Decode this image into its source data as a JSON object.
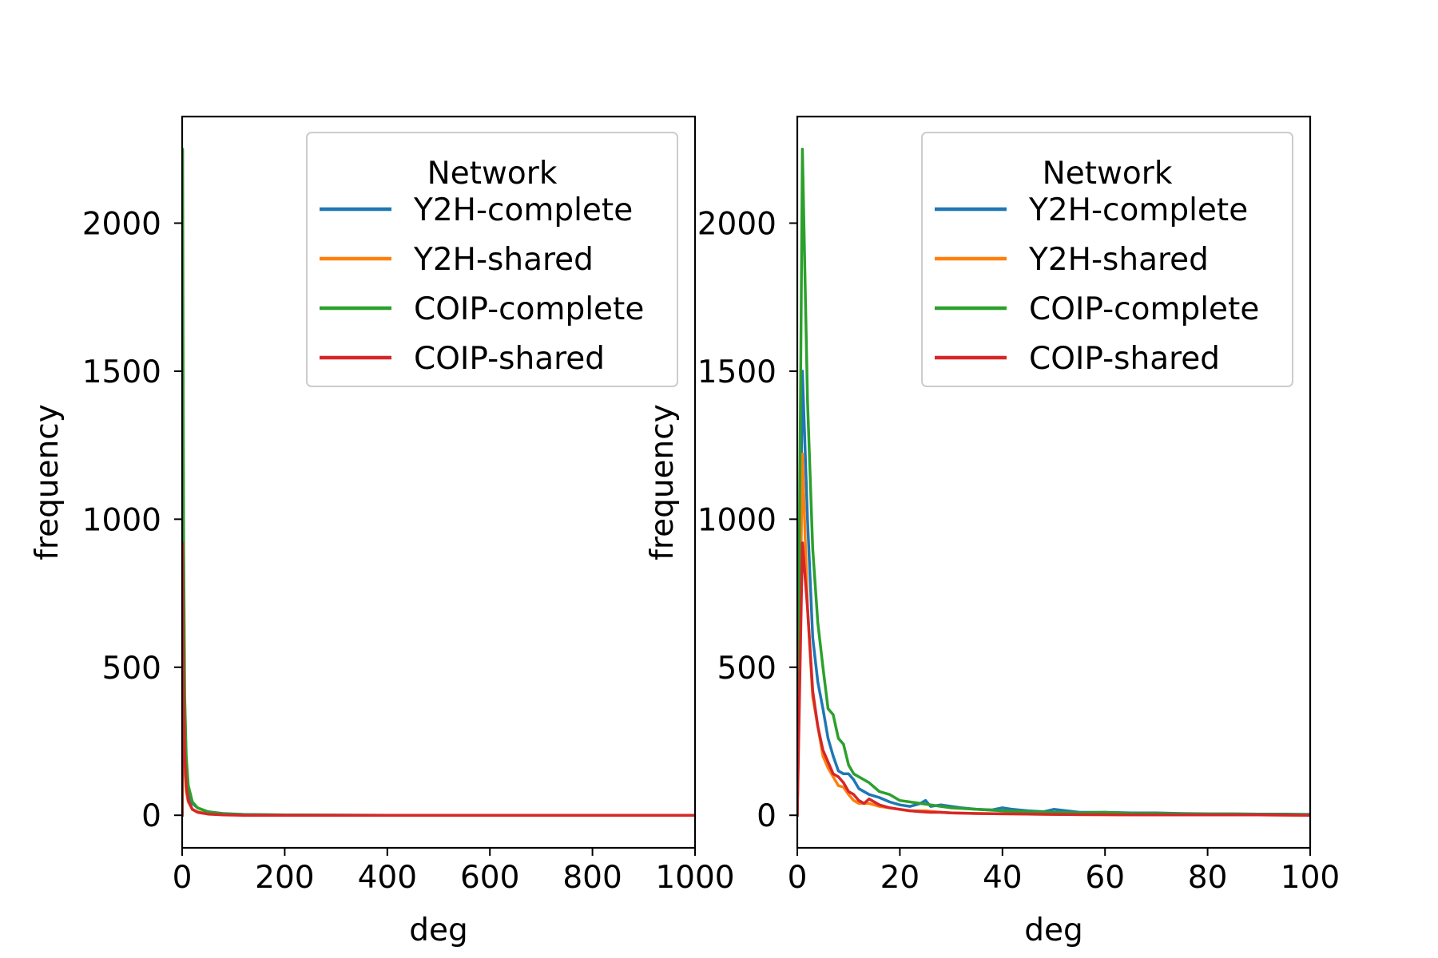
{
  "colors": {
    "Y2H-complete": "#1f77b4",
    "Y2H-shared": "#ff7f0e",
    "COIP-complete": "#2ca02c",
    "COIP-shared": "#d62728"
  },
  "chart_data": [
    {
      "type": "line",
      "xlabel": "deg",
      "ylabel": "frequency",
      "xlim": [
        0,
        1000
      ],
      "ylim": [
        -110,
        2360
      ],
      "xticks": [
        "0",
        "200",
        "400",
        "600",
        "800",
        "1000"
      ],
      "yticks": [
        "0",
        "500",
        "1000",
        "1500",
        "2000"
      ],
      "legend": {
        "title": "Network",
        "position": "top-right"
      },
      "grid": false,
      "series": [
        {
          "name": "Y2H-complete",
          "x": [
            0,
            1,
            2,
            3,
            5,
            8,
            12,
            20,
            30,
            50,
            80,
            120,
            200,
            400,
            1000
          ],
          "y": [
            0,
            1500,
            1000,
            600,
            250,
            120,
            70,
            40,
            25,
            12,
            6,
            3,
            1,
            0,
            0
          ]
        },
        {
          "name": "Y2H-shared",
          "x": [
            0,
            1,
            2,
            3,
            5,
            8,
            12,
            20,
            30,
            50,
            80,
            120,
            200,
            400,
            1000
          ],
          "y": [
            0,
            1220,
            700,
            400,
            160,
            80,
            45,
            20,
            12,
            5,
            2,
            1,
            0,
            0,
            0
          ]
        },
        {
          "name": "COIP-complete",
          "x": [
            0,
            1,
            2,
            3,
            5,
            8,
            12,
            20,
            30,
            50,
            80,
            120,
            200,
            400,
            1000
          ],
          "y": [
            0,
            2250,
            1400,
            900,
            400,
            200,
            100,
            45,
            25,
            12,
            5,
            2,
            1,
            0,
            0
          ]
        },
        {
          "name": "COIP-shared",
          "x": [
            0,
            1,
            2,
            3,
            5,
            8,
            12,
            20,
            30,
            50,
            80,
            120,
            200,
            400,
            1000
          ],
          "y": [
            0,
            920,
            600,
            400,
            200,
            100,
            50,
            20,
            10,
            4,
            1,
            0,
            0,
            0,
            0
          ]
        }
      ]
    },
    {
      "type": "line",
      "xlabel": "deg",
      "ylabel": "frequency",
      "xlim": [
        0,
        100
      ],
      "ylim": [
        -110,
        2360
      ],
      "xticks": [
        "0",
        "20",
        "40",
        "60",
        "80",
        "100"
      ],
      "yticks": [
        "0",
        "500",
        "1000",
        "1500",
        "2000"
      ],
      "legend": {
        "title": "Network",
        "position": "top-right"
      },
      "grid": false,
      "series": [
        {
          "name": "Y2H-complete",
          "x": [
            0,
            1,
            2,
            3,
            4,
            5,
            6,
            7,
            8,
            9,
            10,
            11,
            12,
            14,
            16,
            18,
            20,
            22,
            24,
            25,
            26,
            28,
            30,
            32,
            35,
            38,
            40,
            42,
            45,
            48,
            50,
            55,
            60,
            65,
            70,
            75,
            80,
            85,
            90,
            95,
            100
          ],
          "y": [
            0,
            1500,
            1000,
            600,
            450,
            360,
            260,
            200,
            150,
            140,
            140,
            120,
            90,
            70,
            60,
            45,
            35,
            30,
            40,
            50,
            30,
            35,
            30,
            25,
            20,
            18,
            25,
            20,
            15,
            12,
            20,
            10,
            10,
            8,
            8,
            6,
            5,
            5,
            4,
            4,
            3
          ]
        },
        {
          "name": "Y2H-shared",
          "x": [
            0,
            1,
            2,
            3,
            4,
            5,
            6,
            7,
            8,
            9,
            10,
            11,
            12,
            14,
            16,
            18,
            20,
            22,
            25,
            28,
            30,
            35,
            40,
            45,
            50,
            55,
            60,
            70,
            80,
            90,
            100
          ],
          "y": [
            0,
            1220,
            700,
            400,
            300,
            200,
            160,
            130,
            100,
            95,
            70,
            50,
            40,
            40,
            30,
            25,
            20,
            15,
            15,
            10,
            8,
            6,
            5,
            4,
            3,
            2,
            2,
            1,
            1,
            1,
            0
          ]
        },
        {
          "name": "COIP-complete",
          "x": [
            0,
            1,
            2,
            3,
            4,
            5,
            6,
            7,
            8,
            9,
            10,
            11,
            12,
            14,
            16,
            18,
            20,
            22,
            24,
            26,
            28,
            30,
            35,
            40,
            45,
            50,
            55,
            60,
            65,
            70,
            75,
            80,
            85,
            90,
            95,
            100
          ],
          "y": [
            0,
            2250,
            1400,
            900,
            650,
            500,
            360,
            340,
            260,
            240,
            170,
            140,
            130,
            110,
            80,
            70,
            50,
            45,
            40,
            35,
            30,
            25,
            20,
            15,
            12,
            10,
            8,
            10,
            6,
            6,
            5,
            4,
            4,
            3,
            3,
            2
          ]
        },
        {
          "name": "COIP-shared",
          "x": [
            0,
            1,
            2,
            3,
            4,
            5,
            6,
            7,
            8,
            9,
            10,
            11,
            12,
            13,
            14,
            16,
            18,
            20,
            22,
            24,
            26,
            28,
            30,
            35,
            40,
            45,
            50,
            60,
            70,
            80,
            90,
            100
          ],
          "y": [
            0,
            920,
            700,
            420,
            300,
            220,
            180,
            140,
            130,
            110,
            80,
            70,
            50,
            40,
            55,
            35,
            25,
            20,
            15,
            12,
            10,
            10,
            8,
            6,
            5,
            4,
            3,
            2,
            1,
            1,
            1,
            0
          ]
        }
      ]
    }
  ]
}
